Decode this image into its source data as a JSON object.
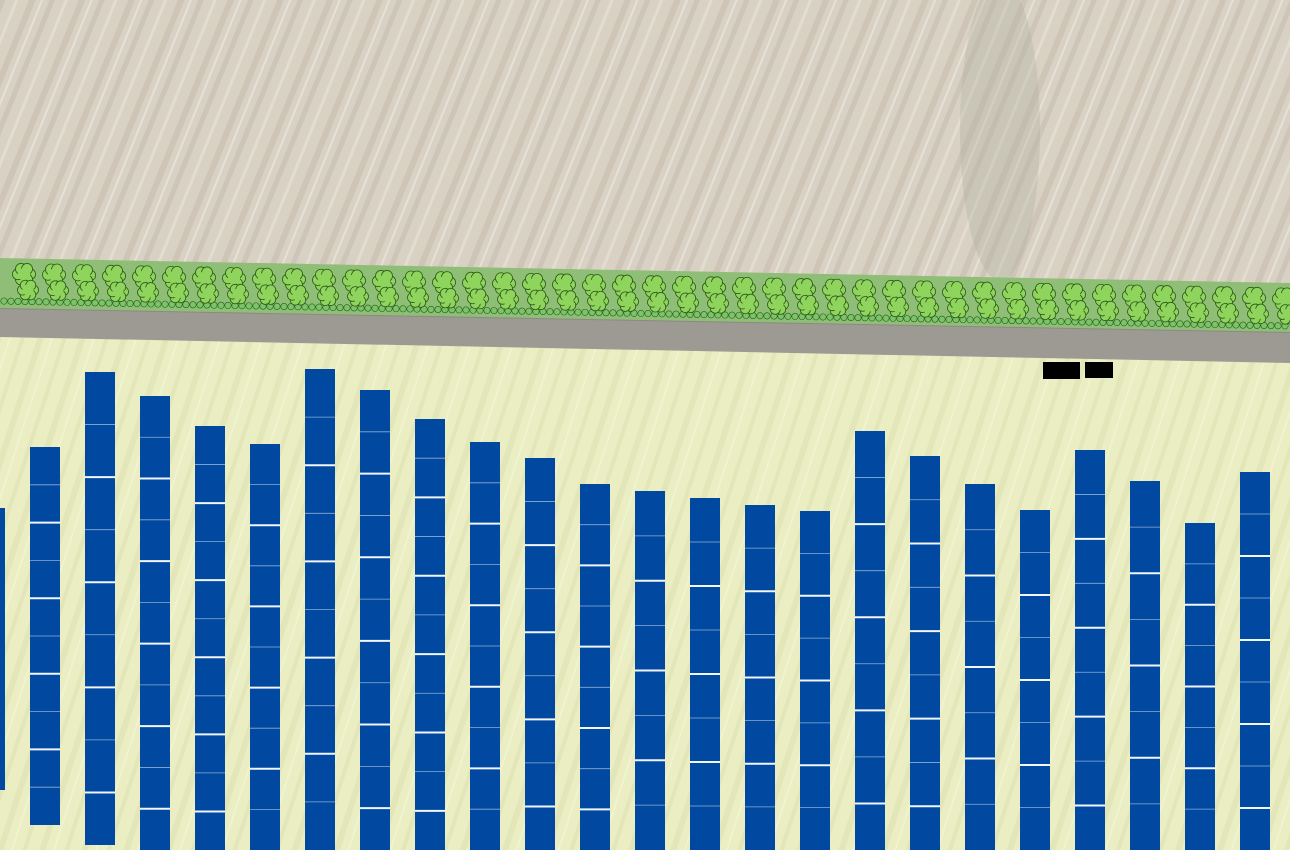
{
  "map": {
    "colors": {
      "field_top": "#d8d1c4",
      "hedge_band": "#8fbf76",
      "tree_fill": "#8fd45c",
      "tree_stroke": "#2d5a1a",
      "shrub_fill": "#7ac46a",
      "road": "#9c9a93",
      "site": "#eaeec2",
      "panel": "#0048a0",
      "panel_divider": "#ffffff",
      "structure": "#000000"
    },
    "icons": {
      "tree": "tree-icon",
      "shrub": "shrub-icon"
    },
    "panel_rows": [
      {
        "row_name": "panel-row-0",
        "module_breaks": 9
      },
      {
        "row_name": "panel-row-1",
        "module_breaks": 8
      },
      {
        "row_name": "panel-row-2",
        "module_breaks": 10
      },
      {
        "row_name": "panel-row-3",
        "module_breaks": 10
      },
      {
        "row_name": "panel-row-4",
        "module_breaks": 9
      },
      {
        "row_name": "panel-row-5",
        "module_breaks": 9
      },
      {
        "row_name": "panel-row-6",
        "module_breaks": 10
      },
      {
        "row_name": "panel-row-7",
        "module_breaks": 10
      },
      {
        "row_name": "panel-row-8",
        "module_breaks": 9
      },
      {
        "row_name": "panel-row-9",
        "module_breaks": 8
      },
      {
        "row_name": "panel-row-10",
        "module_breaks": 8
      },
      {
        "row_name": "panel-row-11",
        "module_breaks": 7
      },
      {
        "row_name": "panel-row-12",
        "module_breaks": 7
      },
      {
        "row_name": "panel-row-13",
        "module_breaks": 7
      },
      {
        "row_name": "panel-row-14",
        "module_breaks": 7
      },
      {
        "row_name": "panel-row-15",
        "module_breaks": 8
      },
      {
        "row_name": "panel-row-16",
        "module_breaks": 8
      },
      {
        "row_name": "panel-row-17",
        "module_breaks": 7
      },
      {
        "row_name": "panel-row-18",
        "module_breaks": 7
      },
      {
        "row_name": "panel-row-19",
        "module_breaks": 8
      },
      {
        "row_name": "panel-row-20",
        "module_breaks": 7
      },
      {
        "row_name": "panel-row-21",
        "module_breaks": 7
      },
      {
        "row_name": "panel-row-22",
        "module_breaks": 8
      }
    ],
    "structures": [
      {
        "name": "inverter-station-a"
      },
      {
        "name": "inverter-station-b"
      }
    ]
  }
}
